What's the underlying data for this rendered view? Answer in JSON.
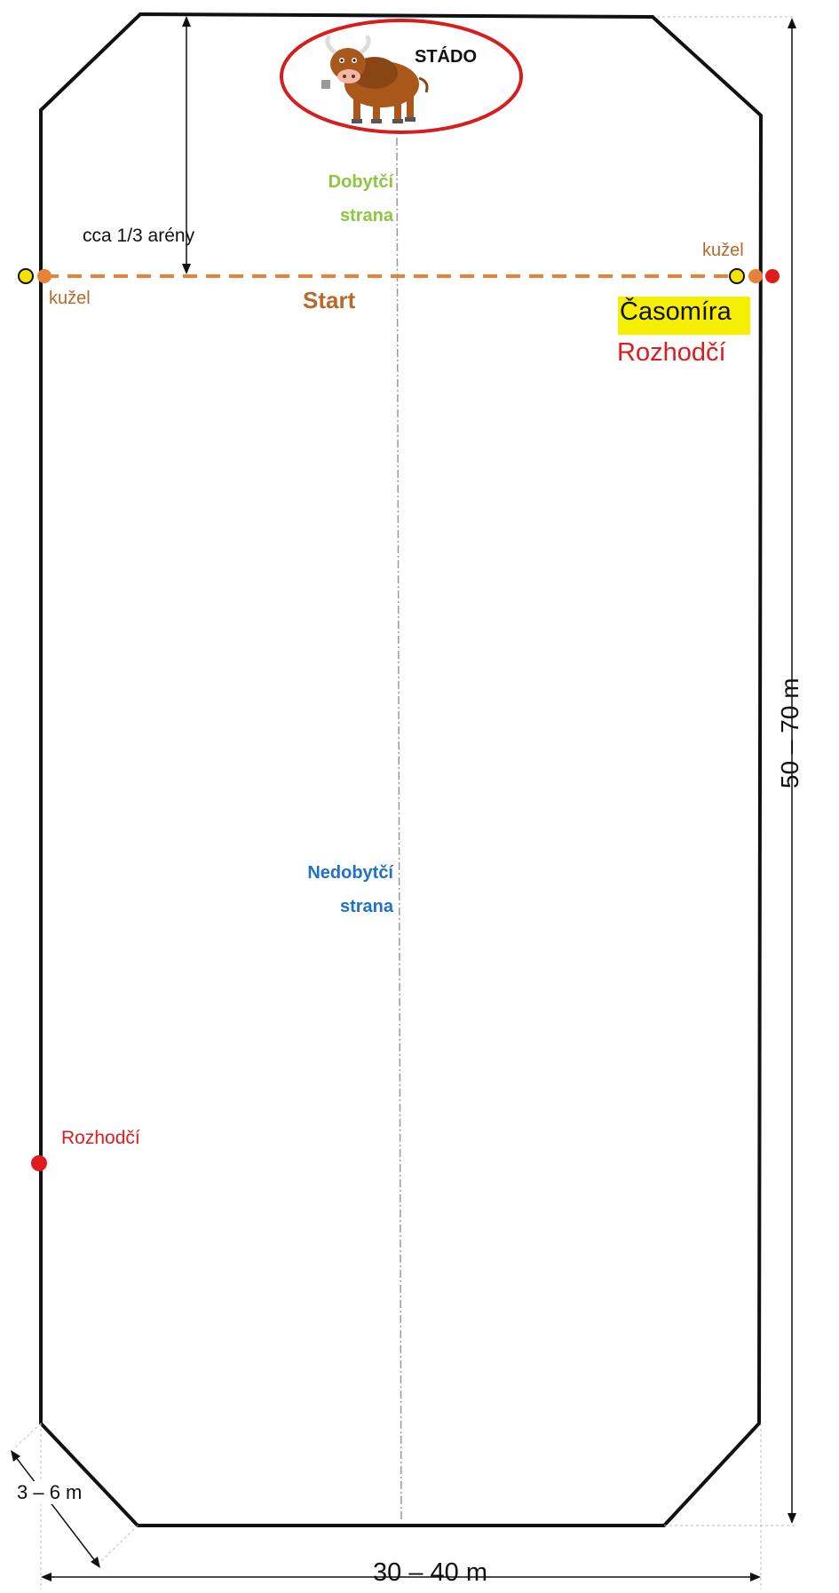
{
  "herd_label": "STÁDO",
  "cattle_side_label": [
    "Dobytčí",
    "strana"
  ],
  "non_cattle_side_label": [
    "Nedobytčí",
    "strana"
  ],
  "start_distance_label": "cca 1/3 arény",
  "cone_label_left": "kužel",
  "cone_label_right": "kužel",
  "start_label": "Start",
  "timekeeper_label": "Časomíra",
  "judge_label_right": "Rozhodčí",
  "judge_label_left": "Rozhodčí",
  "length_label": "50 – 70 m",
  "width_label": "30 – 40 m",
  "corner_label": "3 – 6 m",
  "colors": {
    "outline": "#111111",
    "herd_ellipse": "#d61e1e",
    "start_line": "#e8823a",
    "cattle_side_text": "#8dc63f",
    "non_cattle_side_text": "#1f72c6",
    "start_text": "#b8692a",
    "cone_text": "#b8692a",
    "judge": "#e01b1b",
    "timekeeper_highlight": "#f5f000",
    "cone": "#e8823a",
    "marker_yellow": "#f2e400"
  }
}
